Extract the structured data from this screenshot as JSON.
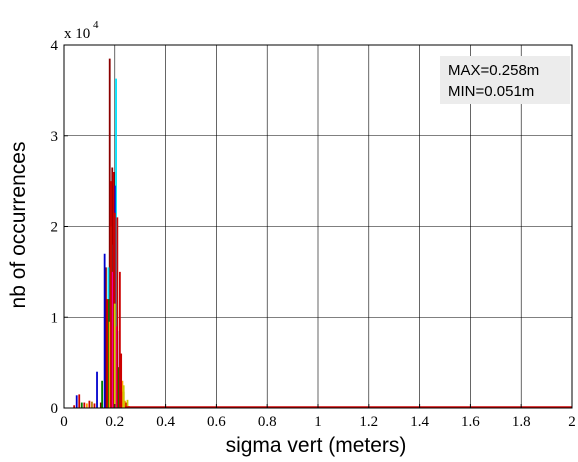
{
  "chart_data": {
    "type": "bar",
    "title": "",
    "xlabel": "sigma vert (meters)",
    "ylabel": "nb of occurrences",
    "xlim": [
      0,
      2
    ],
    "ylim": [
      0,
      40000
    ],
    "x_ticks": [
      "0",
      "0.2",
      "0.4",
      "0.6",
      "0.8",
      "1",
      "1.2",
      "1.4",
      "1.6",
      "1.8",
      "2"
    ],
    "y_ticks": [
      "0",
      "1",
      "2",
      "3",
      "4"
    ],
    "y_scale_label": {
      "base": "x 10",
      "exponent": "4"
    },
    "grid": true,
    "annotation": {
      "lines": [
        "MAX=0.258m",
        "MIN=0.051m"
      ],
      "position": "top-right",
      "background": "#ececec"
    },
    "series": [
      {
        "color": "#8b0000",
        "bars": [
          [
            0.145,
            600
          ],
          [
            0.165,
            15500
          ],
          [
            0.18,
            38500
          ],
          [
            0.19,
            26500
          ],
          [
            0.2,
            8000
          ],
          [
            0.215,
            3500
          ]
        ]
      },
      {
        "color": "#00e5ff",
        "bars": [
          [
            0.175,
            15500
          ],
          [
            0.195,
            18000
          ],
          [
            0.205,
            36300
          ],
          [
            0.22,
            2500
          ]
        ]
      },
      {
        "color": "#0000cc",
        "bars": [
          [
            0.05,
            1400
          ],
          [
            0.13,
            4000
          ],
          [
            0.16,
            17000
          ],
          [
            0.2,
            24500
          ],
          [
            0.21,
            8500
          ]
        ]
      },
      {
        "color": "#008000",
        "bars": [
          [
            0.07,
            600
          ],
          [
            0.15,
            3000
          ],
          [
            0.175,
            12000
          ],
          [
            0.215,
            4500
          ]
        ]
      },
      {
        "color": "#ffa500",
        "bars": [
          [
            0.09,
            500
          ],
          [
            0.18,
            9500
          ],
          [
            0.23,
            3000
          ],
          [
            0.24,
            800
          ]
        ]
      },
      {
        "color": "#b8860b",
        "bars": [
          [
            0.11,
            700
          ],
          [
            0.185,
            20000
          ],
          [
            0.225,
            2500
          ]
        ]
      },
      {
        "color": "#ff00ff",
        "bars": [
          [
            0.19,
            15000
          ],
          [
            0.205,
            9000
          ]
        ]
      },
      {
        "color": "#cc0000",
        "bars": [
          [
            0.04,
            300
          ],
          [
            0.06,
            1500
          ],
          [
            0.08,
            600
          ],
          [
            0.1,
            800
          ],
          [
            0.12,
            500
          ],
          [
            0.17,
            12000
          ],
          [
            0.185,
            25000
          ],
          [
            0.195,
            26000
          ],
          [
            0.2,
            21500
          ],
          [
            0.21,
            21000
          ],
          [
            0.22,
            15000
          ],
          [
            0.225,
            6000
          ],
          [
            0.235,
            1800
          ],
          [
            0.245,
            600
          ],
          [
            0.255,
            200
          ]
        ]
      },
      {
        "color": "#cccc00",
        "bars": [
          [
            0.2,
            11500
          ],
          [
            0.235,
            2500
          ],
          [
            0.25,
            900
          ]
        ]
      }
    ],
    "baseline_color": "#cc0000"
  }
}
